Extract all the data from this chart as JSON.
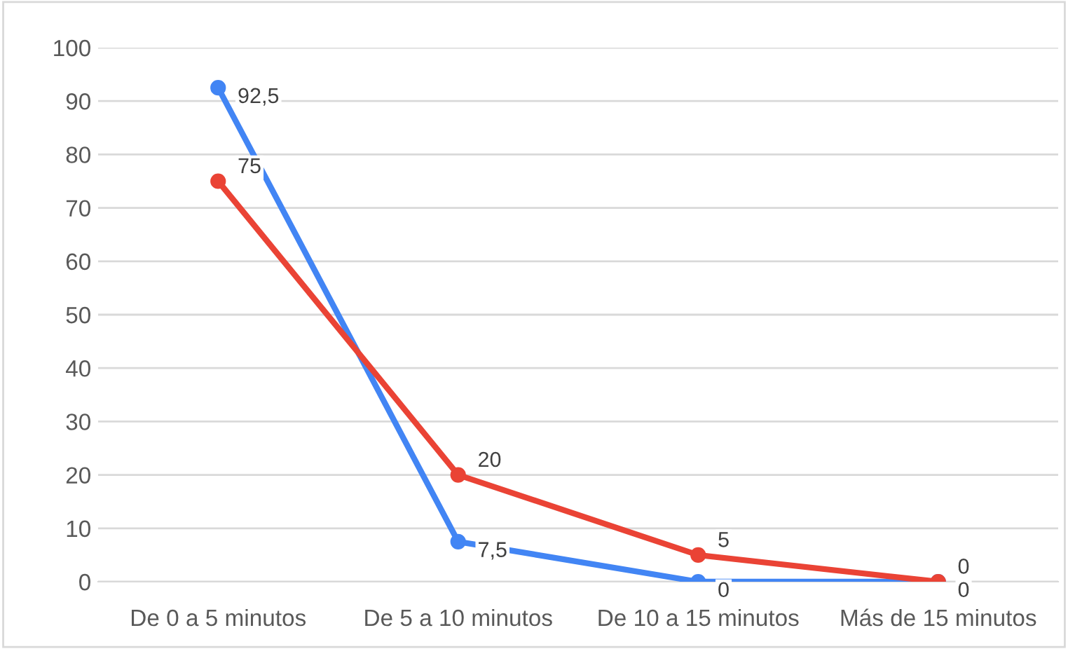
{
  "chart_data": {
    "type": "line",
    "categories": [
      "De 0 a 5 minutos",
      "De 5 a 10 minutos",
      "De 10 a 15 minutos",
      "Más de 15 minutos"
    ],
    "series": [
      {
        "color": "#4285f4",
        "values": [
          92.5,
          7.5,
          0,
          0
        ],
        "value_labels": [
          "92,5",
          "7,5",
          "0",
          "0"
        ]
      },
      {
        "color": "#ea4335",
        "values": [
          75,
          20,
          5,
          0
        ],
        "value_labels": [
          "75",
          "20",
          "5",
          "0"
        ]
      }
    ],
    "ylim": [
      0,
      100
    ],
    "yticks": [
      0,
      10,
      20,
      30,
      40,
      50,
      60,
      70,
      80,
      90,
      100
    ],
    "grid": "y",
    "marker": "circle",
    "line_style": "solid"
  }
}
